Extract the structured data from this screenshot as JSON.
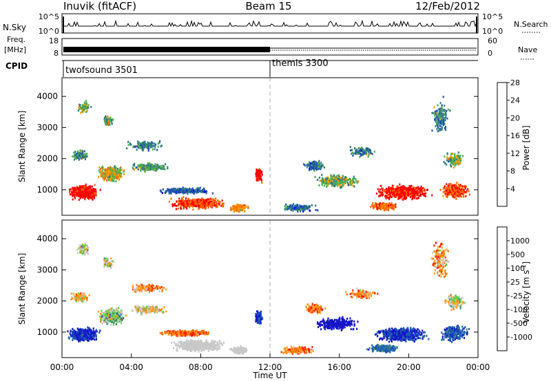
{
  "header": {
    "station": "Inuvik (fitACF)",
    "beam": "Beam 15",
    "date": "12/Feb/2012"
  },
  "summary_panels": {
    "nsky": {
      "left_label": "N.Sky",
      "right_label": "N.Search",
      "ticks_left": [
        "10^5",
        "10^0"
      ],
      "ticks_right": [
        "10^5",
        "10^0"
      ]
    },
    "freq": {
      "left_label_line1": "Freq.",
      "left_label_line2": "[MHz]",
      "right_label": "Nave",
      "ticks_left": [
        "18",
        "8"
      ],
      "ticks_right": [
        "60",
        "0"
      ]
    },
    "cpid": {
      "label": "CPID",
      "programs": [
        {
          "name": "twofsound 3501",
          "start_hour": 0
        },
        {
          "name": "themis 3300",
          "start_hour": 12
        }
      ]
    }
  },
  "chart_data": [
    {
      "type": "heatmap",
      "quantity": "power",
      "ylabel": "Slant Range [km]",
      "xlabel": "",
      "ylim": [
        180,
        4600
      ],
      "xlim": [
        0,
        24
      ],
      "yticks": [
        "1000",
        "2000",
        "3000",
        "4000"
      ],
      "colorbar": {
        "label": "Power [dB]",
        "ticks": [
          "4",
          "8",
          "12",
          "16",
          "20",
          "24",
          "28"
        ],
        "colors": [
          "#0000ff",
          "#1e4fb0",
          "#2f7d7d",
          "#4caf50",
          "#f5a000",
          "#ff6a00",
          "#ff0000"
        ]
      }
    },
    {
      "type": "heatmap",
      "quantity": "velocity",
      "ylabel": "Slant Range [km]",
      "xlabel": "Time UT",
      "ylim": [
        180,
        4600
      ],
      "xlim": [
        0,
        24
      ],
      "yticks": [
        "1000",
        "2000",
        "3000",
        "4000"
      ],
      "xticks": [
        "00:00",
        "04:00",
        "08:00",
        "12:00",
        "16:00",
        "20:00",
        "00:00"
      ],
      "colorbar": {
        "label": "Velocity [m s",
        "label_sup": "-1",
        "label_end": "]",
        "ticks": [
          "1000",
          "500",
          "100",
          "25",
          "-25",
          "-100",
          "-500",
          "-1000"
        ],
        "colors": [
          "#1414c8",
          "#1e5fb4",
          "#3c8c78",
          "#5fd23c",
          "#c8c8c8",
          "#ffa01e",
          "#ff7800",
          "#ff2800",
          "#ff0000"
        ]
      }
    }
  ]
}
